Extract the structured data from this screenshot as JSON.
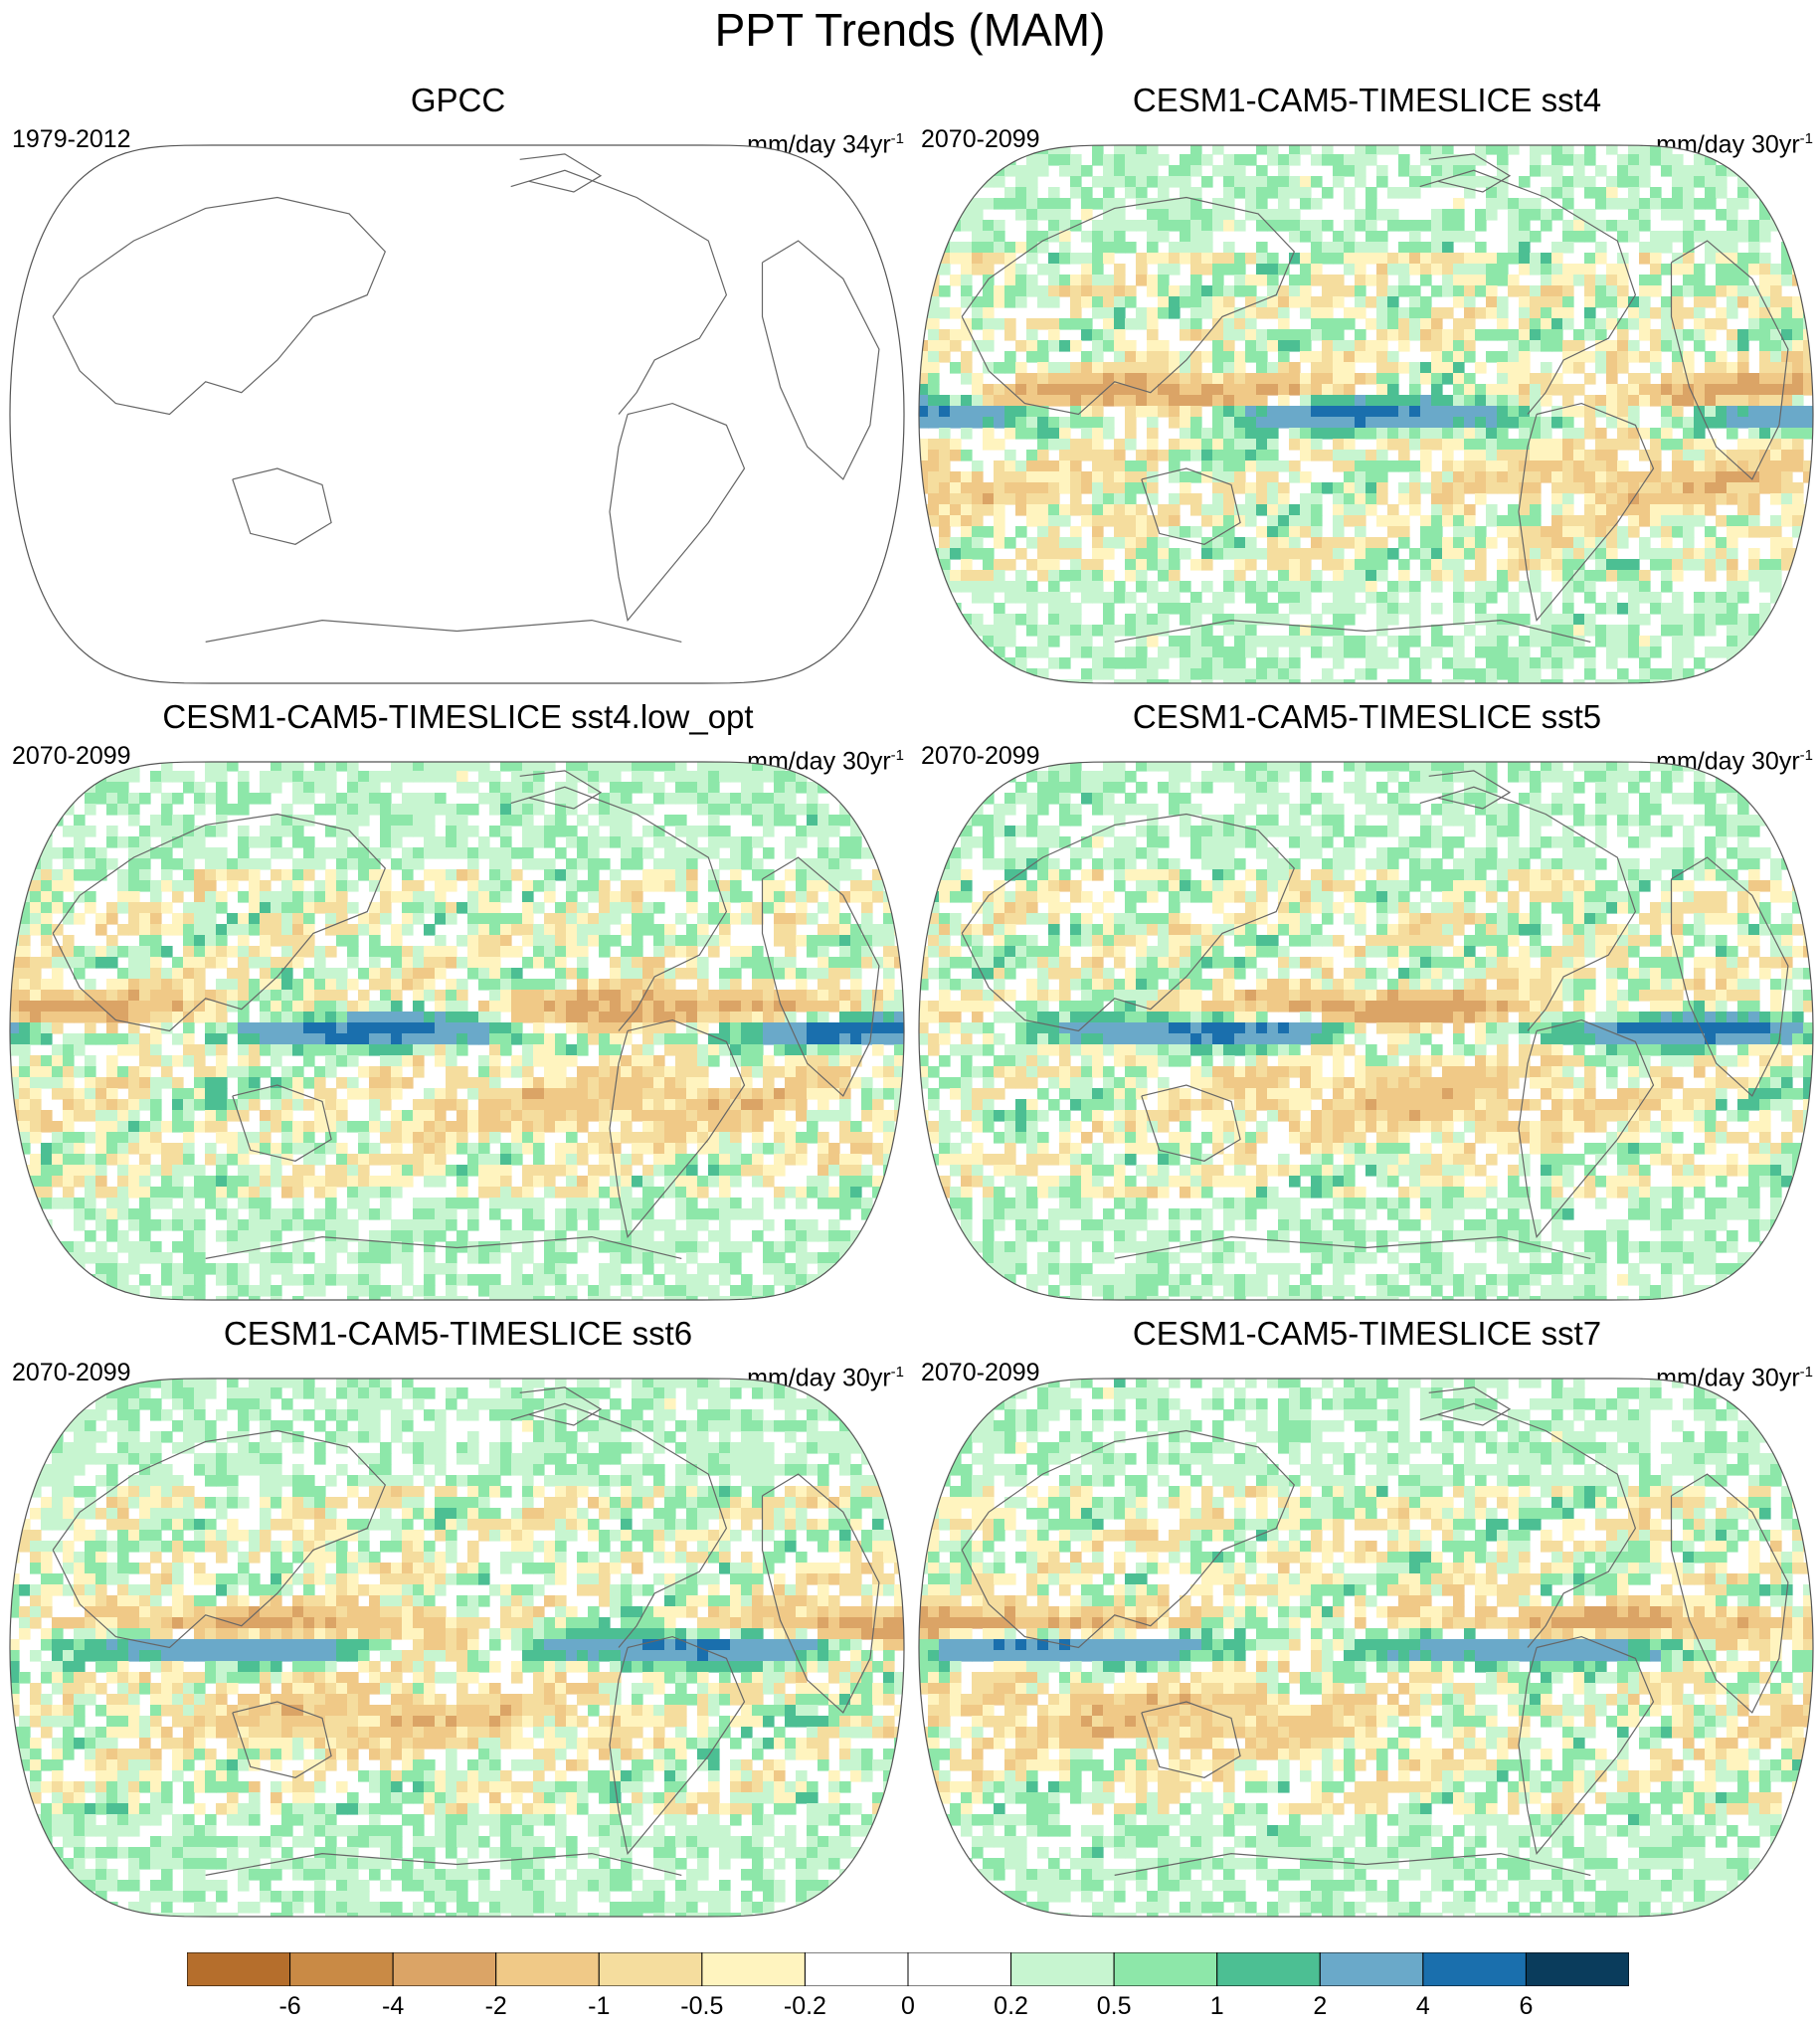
{
  "figure": {
    "title": "PPT Trends (MAM)"
  },
  "panels": [
    {
      "title": "GPCC",
      "period": "1979-2012",
      "units_text": "mm/day 34yr",
      "units_sup": "-1",
      "has_data": false,
      "seed": 1
    },
    {
      "title": "CESM1-CAM5-TIMESLICE sst4",
      "period": "2070-2099",
      "units_text": "mm/day 30yr",
      "units_sup": "-1",
      "has_data": true,
      "seed": 2
    },
    {
      "title": "CESM1-CAM5-TIMESLICE sst4.low_opt",
      "period": "2070-2099",
      "units_text": "mm/day 30yr",
      "units_sup": "-1",
      "has_data": true,
      "seed": 3
    },
    {
      "title": "CESM1-CAM5-TIMESLICE sst5",
      "period": "2070-2099",
      "units_text": "mm/day 30yr",
      "units_sup": "-1",
      "has_data": true,
      "seed": 4
    },
    {
      "title": "CESM1-CAM5-TIMESLICE sst6",
      "period": "2070-2099",
      "units_text": "mm/day 30yr",
      "units_sup": "-1",
      "has_data": true,
      "seed": 5
    },
    {
      "title": "CESM1-CAM5-TIMESLICE sst7",
      "period": "2070-2099",
      "units_text": "mm/day 30yr",
      "units_sup": "-1",
      "has_data": true,
      "seed": 6
    }
  ],
  "colorbar": {
    "labels": [
      "-6",
      "-4",
      "-2",
      "-1",
      "-0.5",
      "-0.2",
      "0",
      "0.2",
      "0.5",
      "1",
      "2",
      "4",
      "6"
    ],
    "colors": [
      "#b56e2c",
      "#c98a45",
      "#dba466",
      "#f0c987",
      "#f5dd9e",
      "#fff4bf",
      "#ffffff",
      "#ffffff",
      "#c7f5d0",
      "#8de7a9",
      "#4cbf93",
      "#6aa9c9",
      "#1a6fad",
      "#0a3c5c"
    ]
  },
  "chart_data": {
    "type": "heatmap",
    "title": "PPT Trends (MAM)",
    "projection": "Robinson-like, Pacific-centered",
    "color_levels": [
      -6,
      -4,
      -2,
      -1,
      -0.5,
      -0.2,
      0,
      0.2,
      0.5,
      1,
      2,
      4,
      6
    ],
    "panels": [
      "GPCC",
      "CESM1-CAM5-TIMESLICE sst4",
      "CESM1-CAM5-TIMESLICE sst4.low_opt",
      "CESM1-CAM5-TIMESLICE sst5",
      "CESM1-CAM5-TIMESLICE sst6",
      "CESM1-CAM5-TIMESLICE sst7"
    ]
  }
}
